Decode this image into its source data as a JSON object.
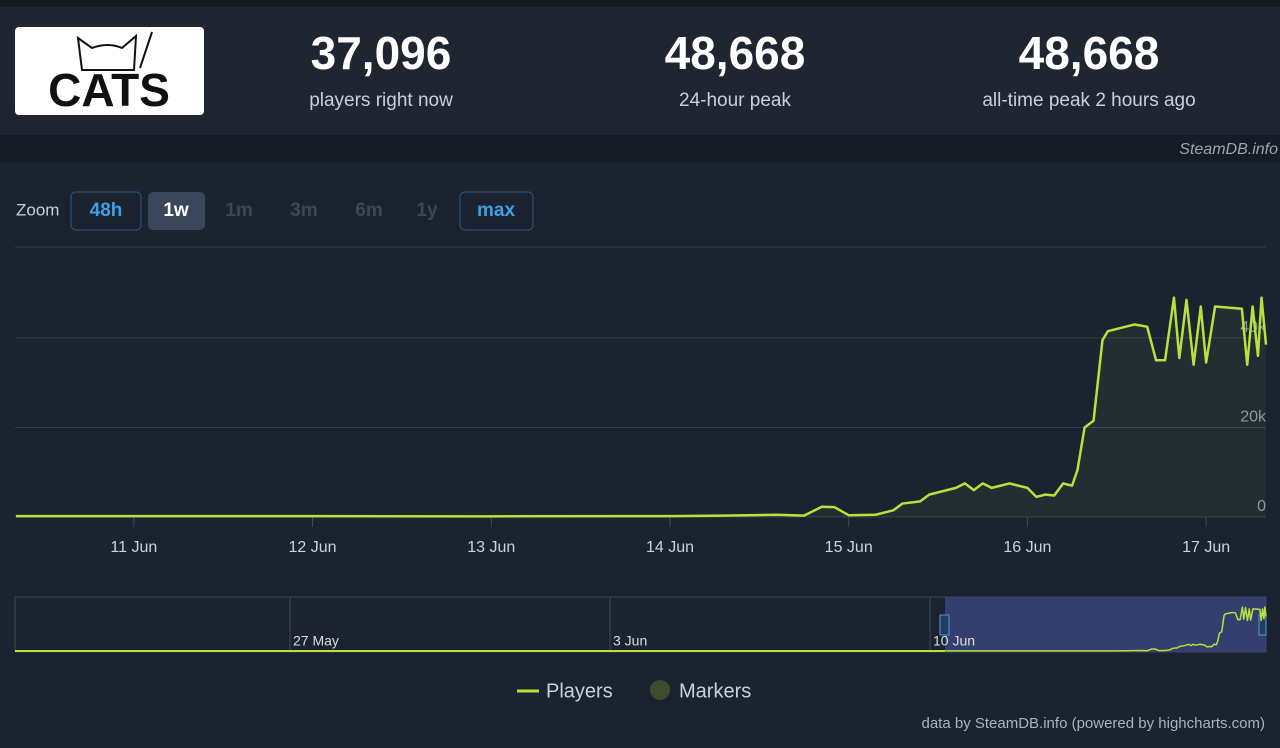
{
  "header": {
    "logo": "CATS",
    "stats": [
      {
        "value": "37,096",
        "label": "players right now"
      },
      {
        "value": "48,668",
        "label": "24-hour peak"
      },
      {
        "value": "48,668",
        "label": "all-time peak 2 hours ago"
      }
    ],
    "watermark": "SteamDB.info"
  },
  "zoom": {
    "label": "Zoom",
    "buttons": [
      "48h",
      "1w",
      "1m",
      "3m",
      "6m",
      "1y",
      "max"
    ]
  },
  "chart_data": {
    "type": "line",
    "x": [
      10.34,
      11,
      12,
      13,
      14,
      14.3,
      14.6,
      14.75,
      14.85,
      14.92,
      15.0,
      15.15,
      15.25,
      15.3,
      15.4,
      15.45,
      15.5,
      15.6,
      15.65,
      15.7,
      15.75,
      15.8,
      15.9,
      15.95,
      16.0,
      16.05,
      16.1,
      16.15,
      16.2,
      16.25,
      16.28,
      16.32,
      16.37,
      16.42,
      16.45,
      16.5,
      16.55,
      16.6,
      16.67,
      16.72,
      16.77,
      16.82,
      16.85,
      16.89,
      16.93,
      16.97,
      17.0,
      17.05,
      17.2,
      17.23,
      17.26,
      17.29,
      17.31,
      17.335
    ],
    "series": [
      {
        "name": "Players",
        "color": "#b5e23c",
        "values": [
          200,
          200,
          200,
          150,
          200,
          300,
          500,
          300,
          2300,
          2200,
          400,
          500,
          1500,
          3000,
          3500,
          5000,
          5500,
          6500,
          7500,
          6000,
          7500,
          6500,
          7500,
          7000,
          6500,
          4500,
          5000,
          4800,
          7500,
          7000,
          10500,
          20000,
          21500,
          39500,
          41500,
          42000,
          42500,
          43000,
          42500,
          35000,
          35000,
          49000,
          35500,
          48500,
          34000,
          47000,
          34500,
          47000,
          46500,
          34000,
          47000,
          36000,
          49000,
          38500
        ]
      }
    ],
    "marker_legend": {
      "name": "Markers",
      "color": "#3f4b2c"
    },
    "xlim": [
      10.335,
      17.335
    ],
    "xticks": [
      {
        "value": 11,
        "label": "11 Jun"
      },
      {
        "value": 12,
        "label": "12 Jun"
      },
      {
        "value": 13,
        "label": "13 Jun"
      },
      {
        "value": 14,
        "label": "14 Jun"
      },
      {
        "value": 15,
        "label": "15 Jun"
      },
      {
        "value": 16,
        "label": "16 Jun"
      },
      {
        "value": 17,
        "label": "17 Jun"
      }
    ],
    "ylim": [
      0,
      60300
    ],
    "yticks": [
      0,
      {
        "value": 20000,
        "label": "20k"
      },
      {
        "value": 40000,
        "label": "40k"
      }
    ],
    "grid": true,
    "navigator_labels": [
      "27 May",
      "3 Jun",
      "10 Jun"
    ],
    "credit": "data by SteamDB.info (powered by highcharts.com)"
  }
}
